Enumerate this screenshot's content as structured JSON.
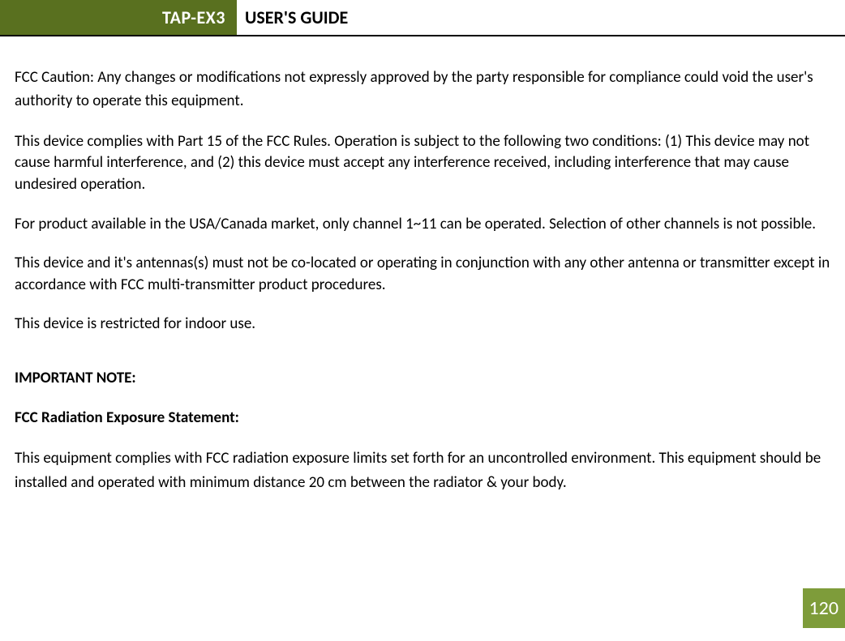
{
  "header": {
    "badge": "TAP-EX3",
    "title": "USER'S GUIDE"
  },
  "colors": {
    "badge_bg": "#59701f",
    "badge_text": "#ffffff",
    "page_number_bg": "#7e9c3a",
    "page_number_text": "#ffffff",
    "body_text": "#000000",
    "background": "#ffffff"
  },
  "typography": {
    "header_fontsize": 22,
    "body_fontsize": 19,
    "page_number_fontsize": 24,
    "font_family": "Calibri"
  },
  "paragraphs": {
    "p1": "FCC Caution: Any changes or modifications not expressly approved by the party responsible for compliance could void the user's authority to operate this equipment.",
    "p2": "This device complies with Part 15 of the FCC Rules. Operation is subject to the following two conditions: (1) This device may not cause harmful interference, and (2) this device must accept any interference received, including interference that may cause undesired operation.",
    "p3": "For product available in the USA/Canada market, only channel 1~11 can be operated. Selection of other channels is not possible.",
    "p4": "This device and it's antennas(s) must not be co-located or operating in conjunction with any other antenna or transmitter except in accordance with FCC multi-transmitter product procedures.",
    "p5": "This device is restricted for indoor use.",
    "note_heading": "IMPORTANT NOTE:",
    "statement_heading": "FCC Radiation Exposure Statement:",
    "p6": "This equipment complies with FCC radiation exposure limits set forth for an uncontrolled environment. This equipment should be installed and operated with minimum distance 20 cm between the radiator & your body."
  },
  "page_number": "120"
}
